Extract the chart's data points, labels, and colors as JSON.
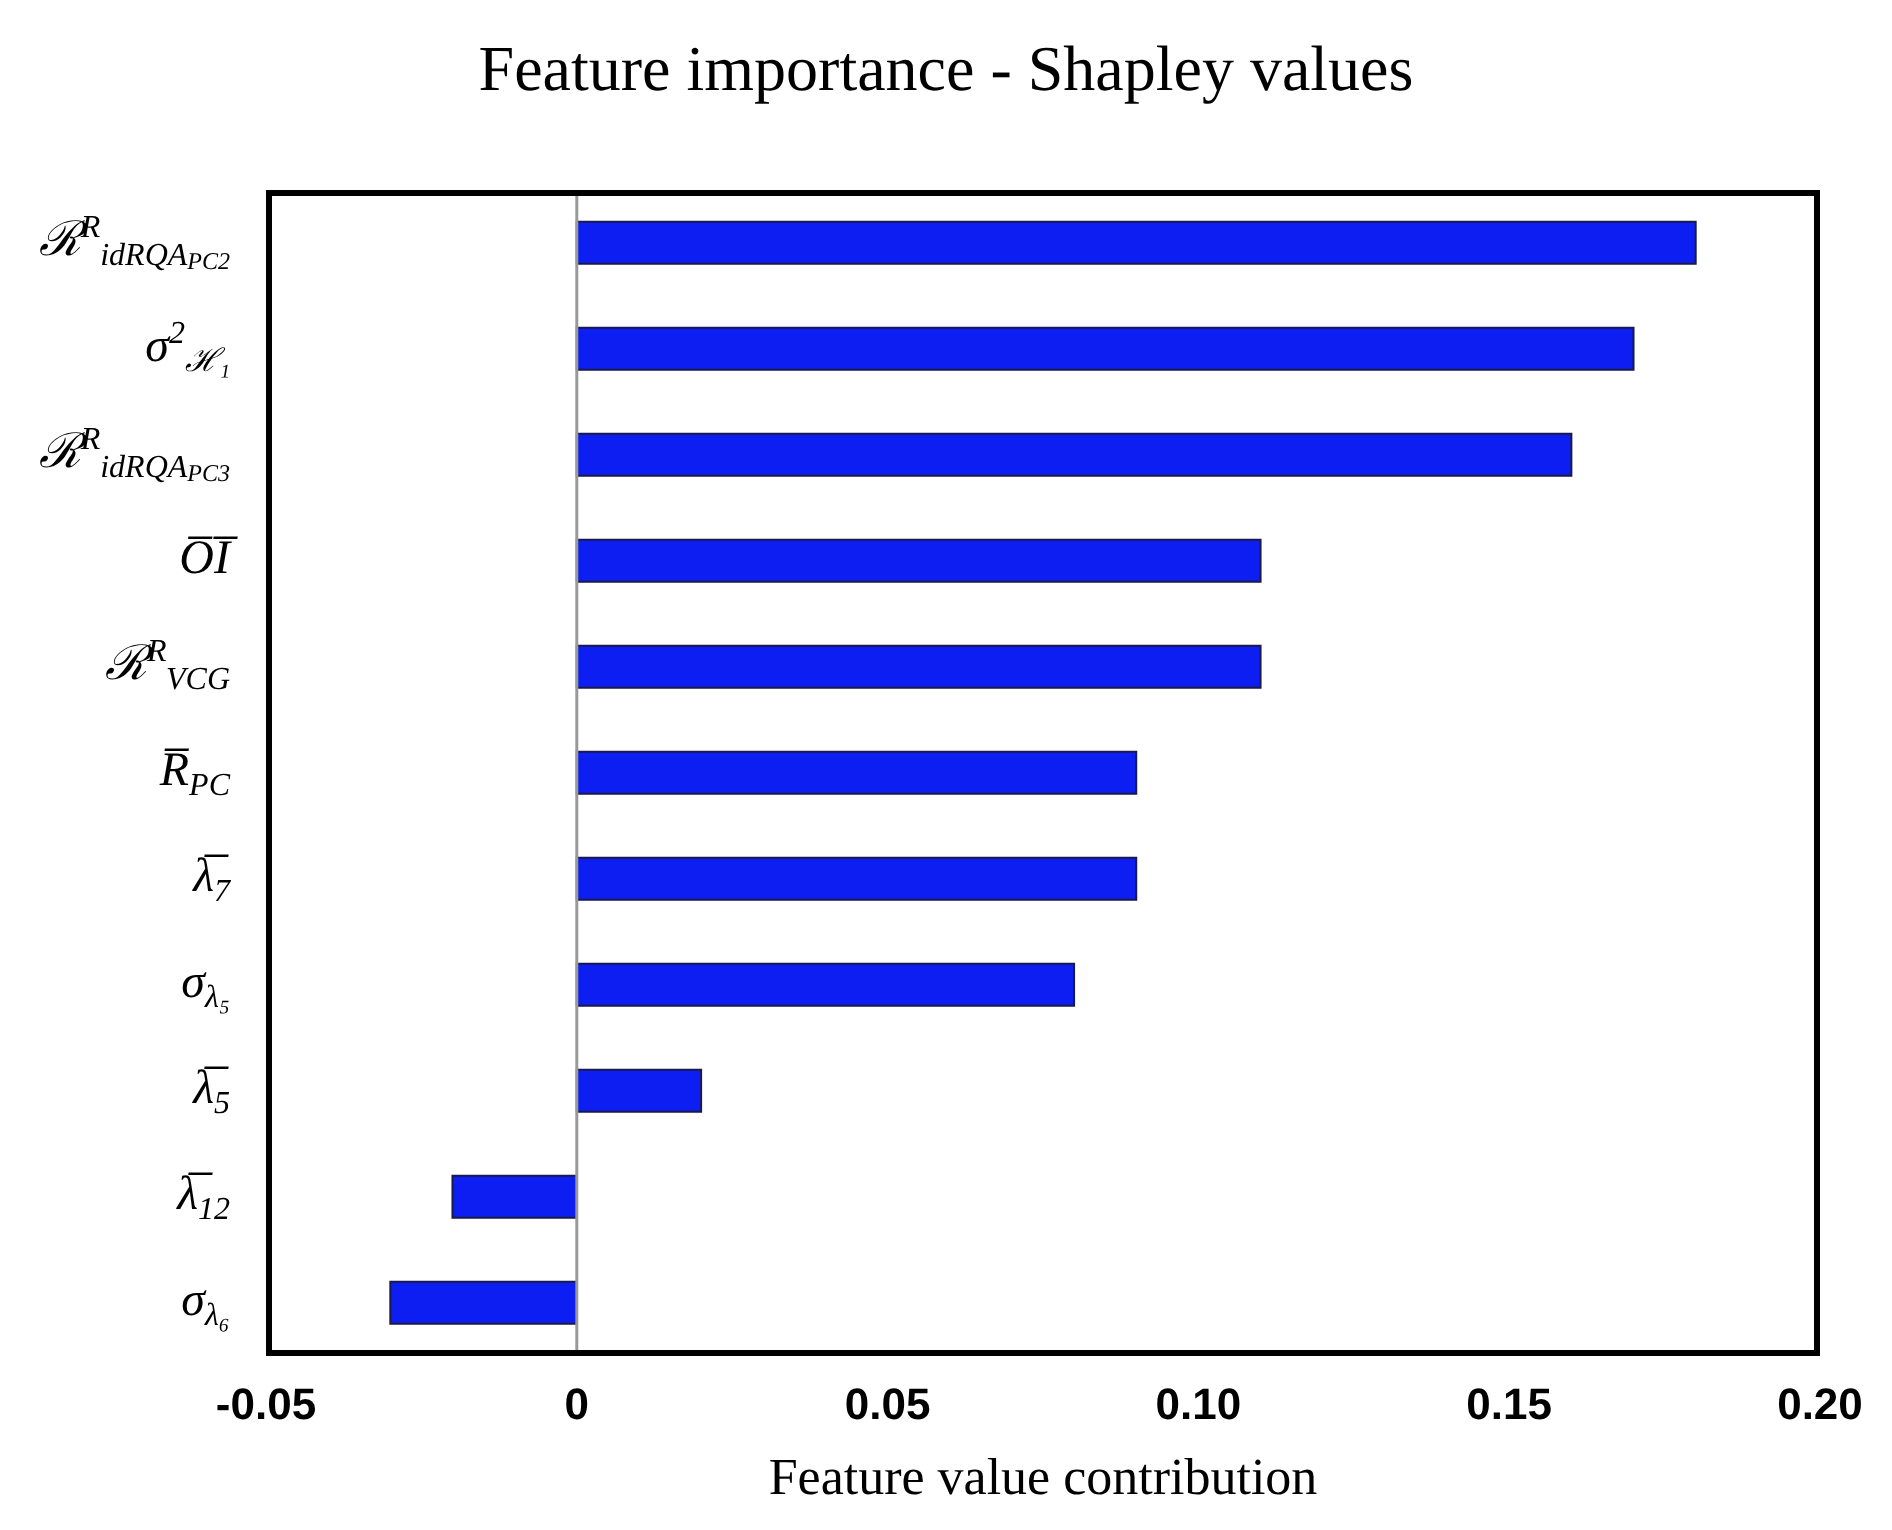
{
  "chart_data": {
    "type": "bar",
    "orientation": "horizontal",
    "title": "Feature importance - Shapley values",
    "xlabel": "Feature value contribution",
    "categories": [
      "ℛ$^{R}$$_{idRQA}$$_{PC2}$",
      "σ$^{2}$$_{ℋ₁}$",
      "ℛ$^{R}$$_{idRQA}$$_{PC3}$",
      "O̅I̅",
      "ℛ$^{R}$$_{VCG}$",
      "R̅$_{PC}$",
      "λ̅$_{7}$",
      "σ$_{λ₅}$",
      "λ̅$_{5}$",
      "λ̅$_{12}$",
      "σ$_{λ₆}$"
    ],
    "values": [
      0.18,
      0.17,
      0.16,
      0.11,
      0.11,
      0.09,
      0.09,
      0.08,
      0.02,
      -0.02,
      -0.03
    ],
    "color": "#0c1ef2",
    "xlim": [
      -0.05,
      0.2
    ],
    "xticks": [
      -0.05,
      0,
      0.05,
      {
        "value": 0.1,
        "label": "0.10"
      },
      0.15,
      {
        "value": 0.2,
        "label": "0.20"
      }
    ],
    "ref_lines": [
      {
        "axis": "x",
        "value": 0,
        "color": "#999999"
      }
    ],
    "grid": false,
    "legend": false
  }
}
